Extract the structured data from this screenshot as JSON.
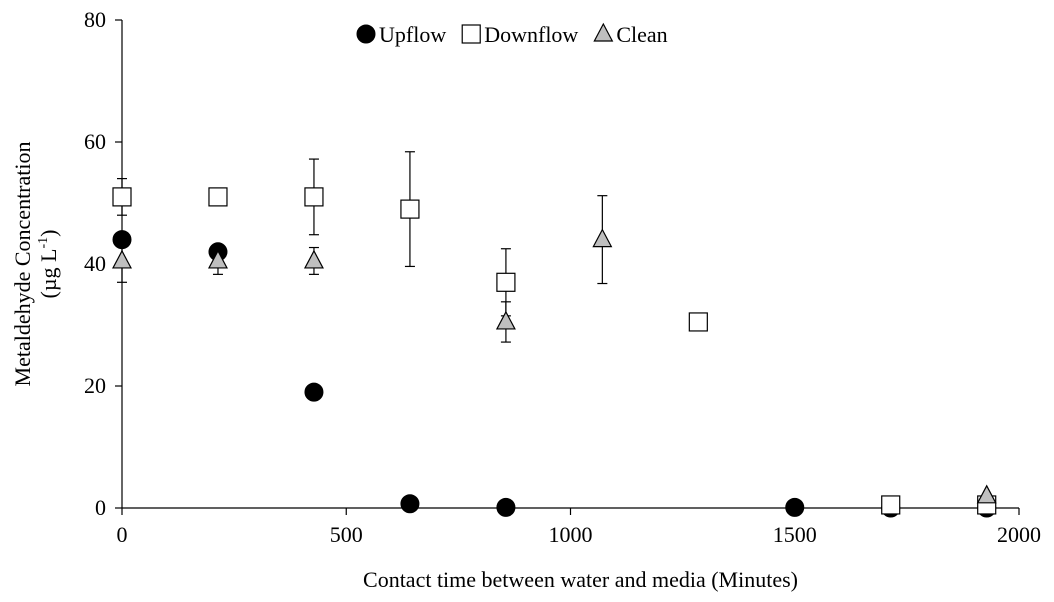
{
  "chart_data": {
    "type": "scatter",
    "xlabel": "Contact time between water and media (Minutes)",
    "ylabel_line1": "Metaldehyde Concentration",
    "ylabel_line2_main": "(µg L",
    "ylabel_line2_sup": "-1",
    "ylabel_line2_end": ")",
    "xlim": [
      0,
      2000
    ],
    "ylim": [
      0,
      80
    ],
    "x_ticks": [
      0,
      500,
      1000,
      1500,
      2000
    ],
    "y_ticks": [
      0,
      20,
      40,
      60,
      80
    ],
    "x_tick_labels": [
      "0",
      "500",
      "1000",
      "1500",
      "2000"
    ],
    "y_tick_labels": [
      "0",
      "20",
      "40",
      "60",
      "80"
    ],
    "grid": false,
    "legend_placement": "top-center",
    "series": [
      {
        "name": "Upflow",
        "marker": "circle",
        "fill": "#000000",
        "points": [
          {
            "x": 0,
            "y": 44
          },
          {
            "x": 214,
            "y": 42
          },
          {
            "x": 428,
            "y": 19
          },
          {
            "x": 642,
            "y": 0.7
          },
          {
            "x": 856,
            "y": 0.1
          },
          {
            "x": 1500,
            "y": 0.1
          },
          {
            "x": 1714,
            "y": 0
          },
          {
            "x": 1928,
            "y": 0
          }
        ]
      },
      {
        "name": "Downflow",
        "marker": "square",
        "fill": "#ffffff",
        "points": [
          {
            "x": 0,
            "y": 51,
            "err": 3
          },
          {
            "x": 214,
            "y": 51
          },
          {
            "x": 428,
            "y": 51,
            "err": 6.2
          },
          {
            "x": 642,
            "y": 49,
            "err": 9.4
          },
          {
            "x": 856,
            "y": 37,
            "err": 5.5
          },
          {
            "x": 1285,
            "y": 30.5
          },
          {
            "x": 1714,
            "y": 0.5
          },
          {
            "x": 1928,
            "y": 0.5
          }
        ]
      },
      {
        "name": "Clean",
        "marker": "triangle",
        "fill": "#bfbfbf",
        "points": [
          {
            "x": 0,
            "y": 40.5,
            "err": 3.5
          },
          {
            "x": 214,
            "y": 40.5,
            "err": 2.2
          },
          {
            "x": 428,
            "y": 40.5,
            "err": 2.2
          },
          {
            "x": 856,
            "y": 30.5,
            "err": 3.3
          },
          {
            "x": 1071,
            "y": 44,
            "err": 7.2
          },
          {
            "x": 1928,
            "y": 2
          }
        ]
      }
    ]
  }
}
